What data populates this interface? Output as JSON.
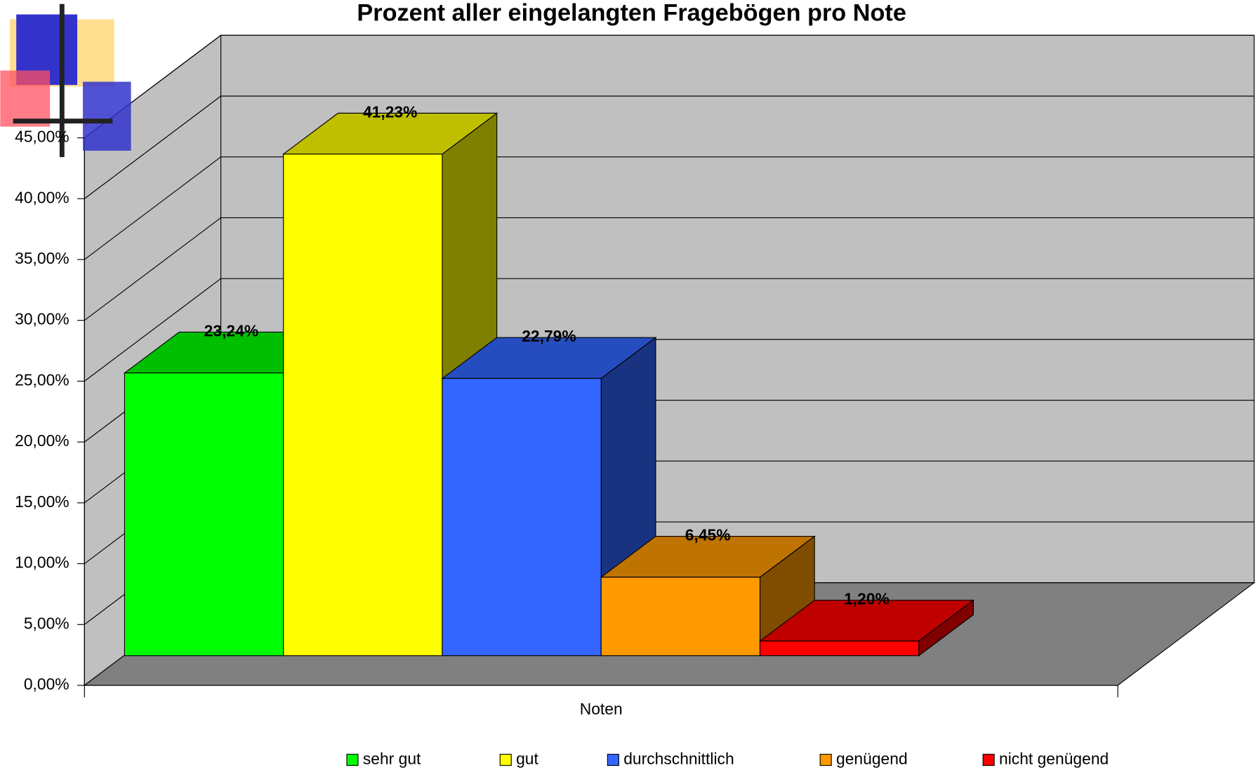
{
  "chart_data": {
    "type": "bar",
    "title": "Prozent aller eingelangten Fragebögen pro Note",
    "x_label": "Noten",
    "series": [
      {
        "name": "sehr gut",
        "color": "#00ff00",
        "values": [
          23.24
        ],
        "value_labels": [
          "23,24%"
        ]
      },
      {
        "name": "gut",
        "color": "#ffff00",
        "values": [
          41.23
        ],
        "value_labels": [
          "41,23%"
        ]
      },
      {
        "name": "durchschnittlich",
        "color": "#3366ff",
        "values": [
          22.79
        ],
        "value_labels": [
          "22,79%"
        ]
      },
      {
        "name": "genügend",
        "color": "#ff9900",
        "values": [
          6.45
        ],
        "value_labels": [
          "6,45%"
        ]
      },
      {
        "name": "nicht genügend",
        "color": "#ff0000",
        "values": [
          1.2
        ],
        "value_labels": [
          "1,20%"
        ]
      }
    ],
    "ylim": [
      0,
      45
    ],
    "yticks": [
      {
        "value": 0,
        "label": "0,00%"
      },
      {
        "value": 5,
        "label": "5,00%"
      },
      {
        "value": 10,
        "label": "10,00%"
      },
      {
        "value": 15,
        "label": "15,00%"
      },
      {
        "value": 20,
        "label": "20,00%"
      },
      {
        "value": 25,
        "label": "25,00%"
      },
      {
        "value": 30,
        "label": "30,00%"
      },
      {
        "value": 35,
        "label": "35,00%"
      },
      {
        "value": 40,
        "label": "40,00%"
      },
      {
        "value": 45,
        "label": "45,00%"
      }
    ],
    "grid": true,
    "legend": "bottom"
  }
}
